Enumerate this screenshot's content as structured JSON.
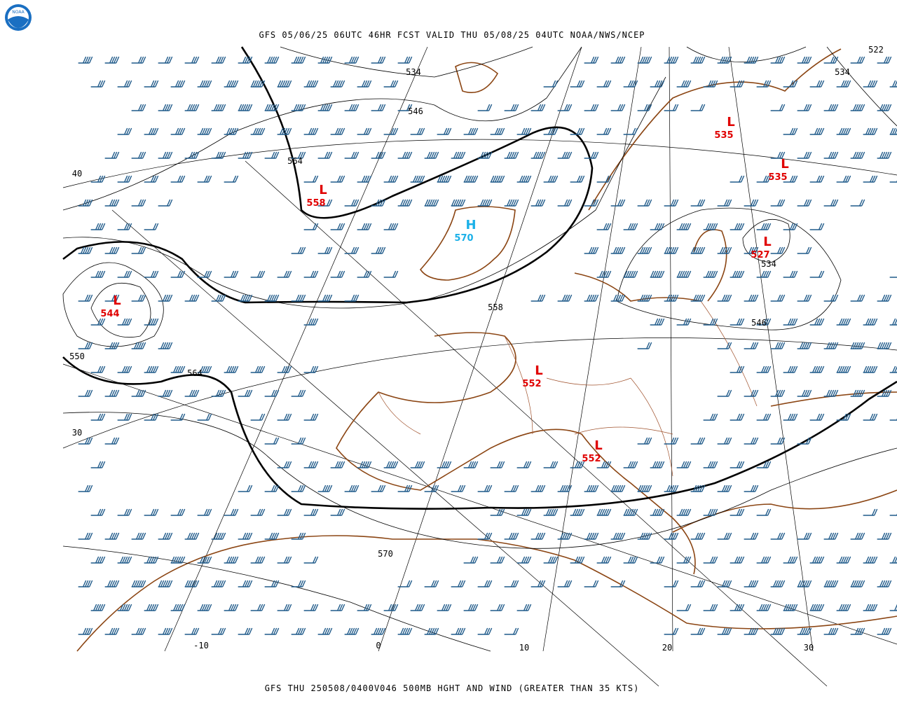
{
  "logo": "NOAA",
  "header": {
    "title": "GFS 05/06/25 06UTC 46HR FCST VALID THU 05/08/25 04UTC NOAA/NWS/NCEP"
  },
  "footer": {
    "title": "GFS THU 250508/0400V046 500MB HGHT AND WIND (GREATER THAN 35 KTS)"
  },
  "contour_labels": [
    534,
    546,
    564,
    558,
    564,
    550,
    570,
    546,
    534,
    534,
    522
  ],
  "centers": [
    {
      "kind": "L",
      "value": 535
    },
    {
      "kind": "L",
      "value": 535
    },
    {
      "kind": "L",
      "value": 527
    },
    {
      "kind": "L",
      "value": 558
    },
    {
      "kind": "H",
      "value": 570
    },
    {
      "kind": "L",
      "value": 544
    },
    {
      "kind": "L",
      "value": 552
    },
    {
      "kind": "L",
      "value": 552
    }
  ],
  "latitude_labels": [
    40,
    30
  ],
  "longitude_labels": [
    -10,
    0,
    10,
    20,
    30
  ]
}
